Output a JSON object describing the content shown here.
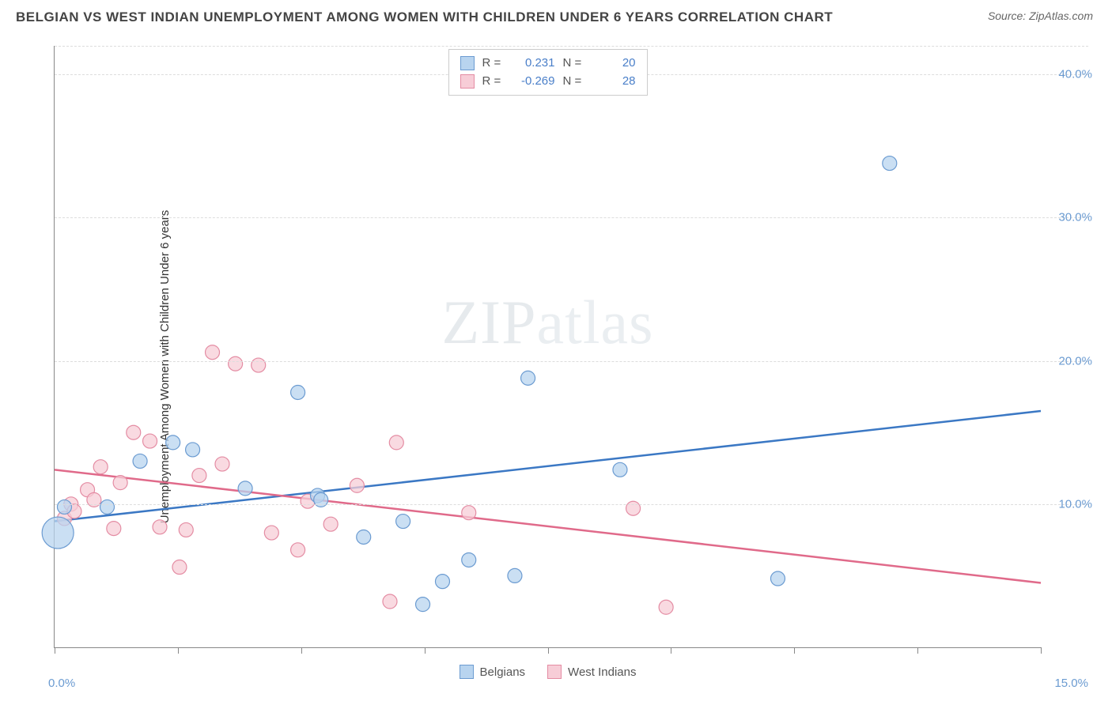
{
  "header": {
    "title": "BELGIAN VS WEST INDIAN UNEMPLOYMENT AMONG WOMEN WITH CHILDREN UNDER 6 YEARS CORRELATION CHART",
    "source": "Source: ZipAtlas.com"
  },
  "watermark": {
    "left": "ZIP",
    "right": "atlas"
  },
  "chart": {
    "type": "scatter",
    "ylabel": "Unemployment Among Women with Children Under 6 years",
    "xlim": [
      0,
      15
    ],
    "ylim": [
      0,
      42
    ],
    "xticks_pct": [
      0,
      12.5,
      25,
      37.5,
      50,
      62.5,
      75,
      87.5,
      100
    ],
    "xlabels": [
      {
        "pct": 0,
        "text": "0.0%"
      },
      {
        "pct": 100,
        "text": "15.0%"
      }
    ],
    "ygrid": [
      {
        "val": 10,
        "text": "10.0%"
      },
      {
        "val": 20,
        "text": "20.0%"
      },
      {
        "val": 30,
        "text": "30.0%"
      },
      {
        "val": 40,
        "text": "40.0%"
      }
    ],
    "colors": {
      "belg_fill": "#b8d4ef",
      "belg_stroke": "#6b9bd1",
      "wind_fill": "#f7cdd7",
      "wind_stroke": "#e48ca3",
      "belg_line": "#3b78c4",
      "wind_line": "#e06a8a",
      "axis": "#888888",
      "grid": "#dddddd",
      "tick_label": "#6b9bd1",
      "title_color": "#444444",
      "bg": "#ffffff"
    },
    "legend_top": [
      {
        "series": "belg",
        "r_label": "R =",
        "r_val": "0.231",
        "n_label": "N =",
        "n_val": "20"
      },
      {
        "series": "wind",
        "r_label": "R =",
        "r_val": "-0.269",
        "n_label": "N =",
        "n_val": "28"
      }
    ],
    "legend_bottom": [
      {
        "series": "belg",
        "label": "Belgians"
      },
      {
        "series": "wind",
        "label": "West Indians"
      }
    ],
    "trend_lines": {
      "belg": {
        "x1": 0,
        "y1": 8.8,
        "x2": 15,
        "y2": 16.5
      },
      "wind": {
        "x1": 0,
        "y1": 12.4,
        "x2": 15,
        "y2": 4.5
      }
    },
    "default_radius": 9,
    "points": {
      "belg": [
        {
          "x": 0.05,
          "y": 8.0,
          "r": 20
        },
        {
          "x": 0.15,
          "y": 9.8
        },
        {
          "x": 0.8,
          "y": 9.8
        },
        {
          "x": 1.3,
          "y": 13.0
        },
        {
          "x": 1.8,
          "y": 14.3
        },
        {
          "x": 2.1,
          "y": 13.8
        },
        {
          "x": 2.9,
          "y": 11.1
        },
        {
          "x": 3.7,
          "y": 17.8
        },
        {
          "x": 4.0,
          "y": 10.6
        },
        {
          "x": 4.05,
          "y": 10.3
        },
        {
          "x": 4.7,
          "y": 7.7
        },
        {
          "x": 5.3,
          "y": 8.8
        },
        {
          "x": 5.6,
          "y": 3.0
        },
        {
          "x": 5.9,
          "y": 4.6
        },
        {
          "x": 6.3,
          "y": 6.1
        },
        {
          "x": 7.0,
          "y": 5.0
        },
        {
          "x": 7.2,
          "y": 18.8
        },
        {
          "x": 8.6,
          "y": 12.4
        },
        {
          "x": 11.0,
          "y": 4.8
        },
        {
          "x": 12.7,
          "y": 33.8
        }
      ],
      "wind": [
        {
          "x": 0.15,
          "y": 9.0
        },
        {
          "x": 0.25,
          "y": 10.0
        },
        {
          "x": 0.3,
          "y": 9.5
        },
        {
          "x": 0.5,
          "y": 11.0
        },
        {
          "x": 0.6,
          "y": 10.3
        },
        {
          "x": 0.7,
          "y": 12.6
        },
        {
          "x": 0.9,
          "y": 8.3
        },
        {
          "x": 1.0,
          "y": 11.5
        },
        {
          "x": 1.2,
          "y": 15.0
        },
        {
          "x": 1.45,
          "y": 14.4
        },
        {
          "x": 1.6,
          "y": 8.4
        },
        {
          "x": 1.9,
          "y": 5.6
        },
        {
          "x": 2.0,
          "y": 8.2
        },
        {
          "x": 2.2,
          "y": 12.0
        },
        {
          "x": 2.4,
          "y": 20.6
        },
        {
          "x": 2.55,
          "y": 12.8
        },
        {
          "x": 2.75,
          "y": 19.8
        },
        {
          "x": 3.1,
          "y": 19.7
        },
        {
          "x": 3.3,
          "y": 8.0
        },
        {
          "x": 3.7,
          "y": 6.8
        },
        {
          "x": 3.85,
          "y": 10.2
        },
        {
          "x": 4.2,
          "y": 8.6
        },
        {
          "x": 4.6,
          "y": 11.3
        },
        {
          "x": 5.2,
          "y": 14.3
        },
        {
          "x": 5.1,
          "y": 3.2
        },
        {
          "x": 6.3,
          "y": 9.4
        },
        {
          "x": 8.8,
          "y": 9.7
        },
        {
          "x": 9.3,
          "y": 2.8
        }
      ]
    }
  }
}
